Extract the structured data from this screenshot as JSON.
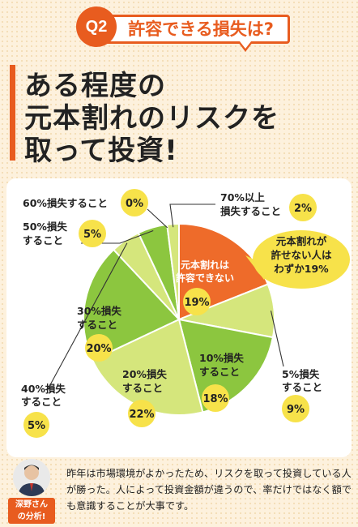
{
  "question": {
    "badge": "Q2",
    "text": "許容できる損失は?"
  },
  "title": {
    "lines": [
      "ある程度の",
      "元本割れのリスクを",
      "取って投資!"
    ]
  },
  "chart_data": {
    "type": "pie",
    "slices": [
      {
        "label": "元本割れは許容できない",
        "value": 19,
        "value_label": "19%",
        "color": "#ee6b2a"
      },
      {
        "label": "5%損失すること",
        "value": 9,
        "value_label": "9%",
        "color": "#d5e67c"
      },
      {
        "label": "10%損失すること",
        "value": 18,
        "value_label": "18%",
        "color": "#8cc63f"
      },
      {
        "label": "20%損失すること",
        "value": 22,
        "value_label": "22%",
        "color": "#d5e67c"
      },
      {
        "label": "30%損失すること",
        "value": 20,
        "value_label": "20%",
        "color": "#8cc63f"
      },
      {
        "label": "40%損失すること",
        "value": 5,
        "value_label": "5%",
        "color": "#d5e67c"
      },
      {
        "label": "50%損失すること",
        "value": 5,
        "value_label": "5%",
        "color": "#8cc63f"
      },
      {
        "label": "60%損失すること",
        "value": 0,
        "value_label": "0%",
        "color": "#8cc63f"
      },
      {
        "label": "70%以上損失すること",
        "value": 2,
        "value_label": "2%",
        "color": "#d5e67c"
      }
    ],
    "callout": [
      "元本割れが",
      "許せない人は",
      "わずか19%"
    ]
  },
  "labels": {
    "s0": [
      "元本割れは",
      "許容できない"
    ],
    "s1": [
      "5%損失",
      "すること"
    ],
    "s2": [
      "10%損失",
      "すること"
    ],
    "s3": [
      "20%損失",
      "すること"
    ],
    "s4": [
      "30%損失",
      "すること"
    ],
    "s5": [
      "40%損失",
      "すること"
    ],
    "s6": [
      "50%損失",
      "すること"
    ],
    "s7": [
      "60%損失すること"
    ],
    "s8": [
      "70%以上",
      "損失すること"
    ]
  },
  "comment": {
    "badge": [
      "深野さん",
      "の分析!"
    ],
    "text": "昨年は市場環境がよかったため、リスクを取って投資している人が勝った。人によって投資金額が違うので、率だけではなく額でも意識することが大事です。"
  },
  "colors": {
    "accent": "#e85c1f",
    "light_green": "#d5e67c",
    "green": "#8cc63f",
    "orange": "#ee6b2a",
    "circle_yellow": "#f7e24a"
  }
}
